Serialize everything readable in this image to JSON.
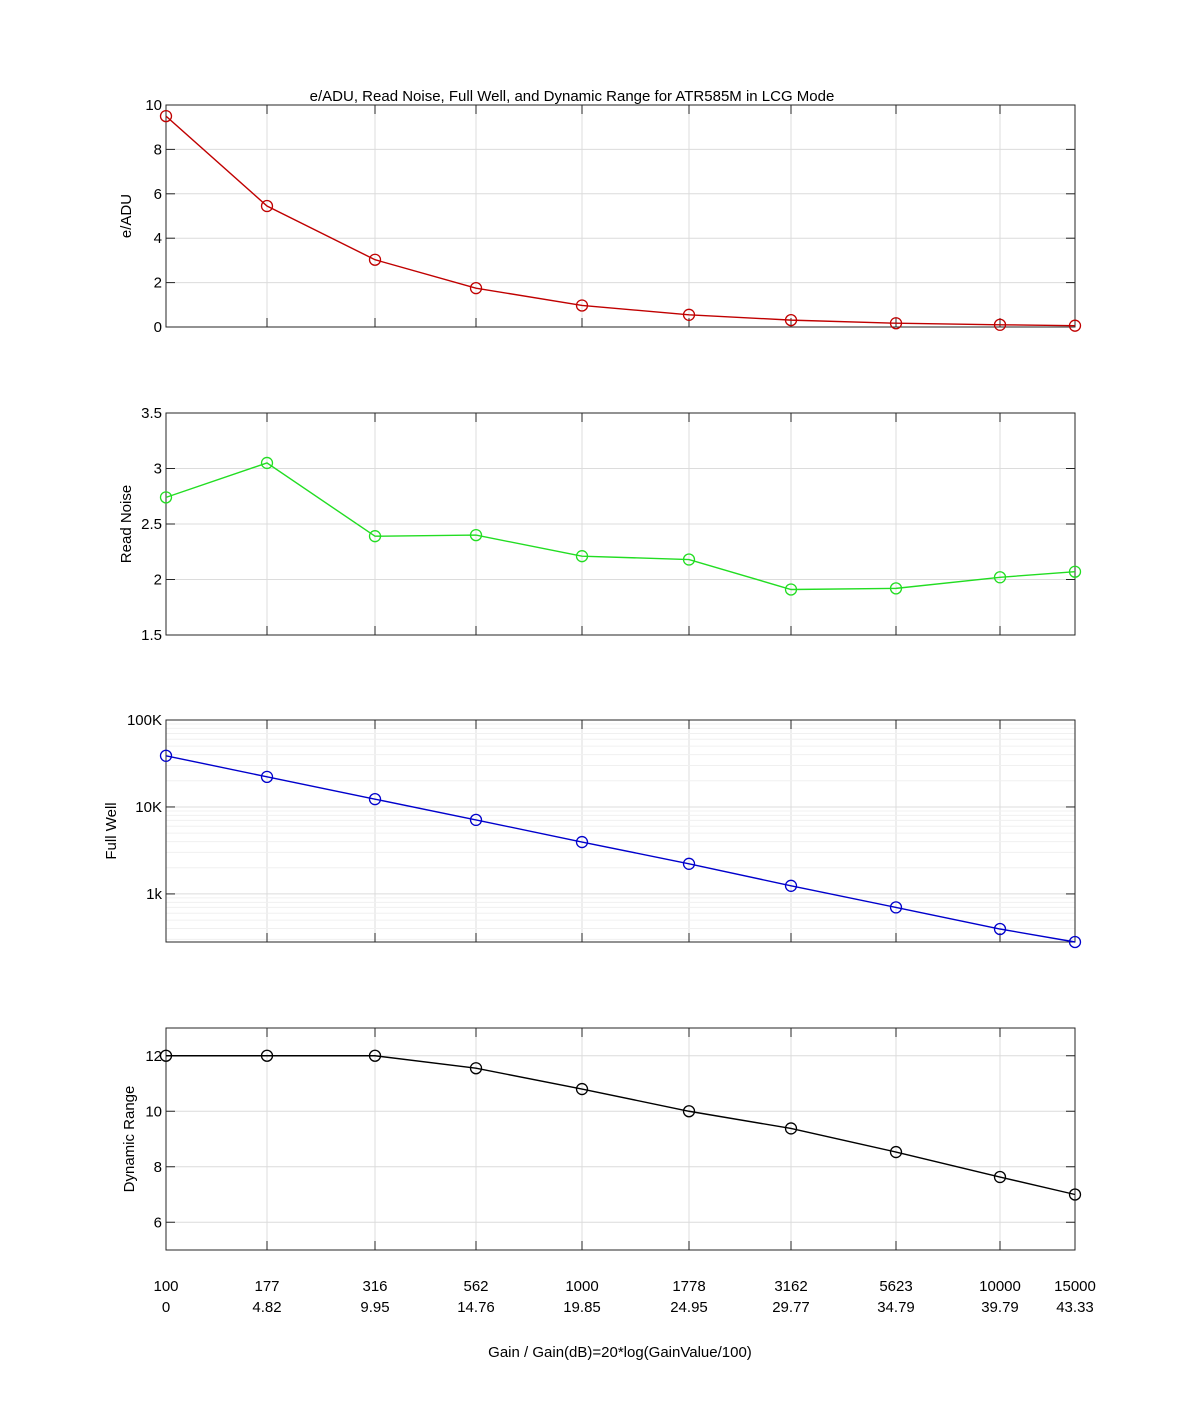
{
  "title": "e/ADU, Read Noise, Full Well, and Dynamic Range for ATR585M  in LCG Mode",
  "xlabel": "Gain / Gain(dB)=20*log(GainValue/100)",
  "x_tick_labels": [
    "100",
    "177",
    "316",
    "562",
    "1000",
    "1778",
    "3162",
    "5623",
    "10000",
    "15000"
  ],
  "x_tick_labels_db": [
    "0",
    "4.82",
    "9.95",
    "14.76",
    "19.85",
    "24.95",
    "29.77",
    "34.79",
    "39.79",
    "43.33"
  ],
  "colors": {
    "e_adu": "#c00000",
    "read_noise": "#22dd22",
    "full_well": "#0000cc",
    "dynamic_range": "#000000"
  },
  "chart_data": [
    {
      "type": "line",
      "ylabel": "e/ADU",
      "ylim": [
        0,
        10
      ],
      "yscale": "linear",
      "grid": true,
      "yticks": [
        0,
        2,
        4,
        6,
        8,
        10
      ],
      "ytick_labels": [
        "0",
        "2",
        "4",
        "6",
        "8",
        "10"
      ],
      "categories": [
        "100",
        "177",
        "316",
        "562",
        "1000",
        "1778",
        "3162",
        "5623",
        "10000",
        "15000"
      ],
      "values": [
        9.5,
        5.45,
        3.03,
        1.75,
        0.97,
        0.55,
        0.31,
        0.17,
        0.1,
        0.06
      ]
    },
    {
      "type": "line",
      "ylabel": "Read Noise",
      "ylim": [
        1.5,
        3.5
      ],
      "yscale": "linear",
      "grid": true,
      "yticks": [
        1.5,
        2,
        2.5,
        3,
        3.5
      ],
      "ytick_labels": [
        "1.5",
        "2",
        "2.5",
        "3",
        "3.5"
      ],
      "categories": [
        "100",
        "177",
        "316",
        "562",
        "1000",
        "1778",
        "3162",
        "5623",
        "10000",
        "15000"
      ],
      "values": [
        2.74,
        3.05,
        2.39,
        2.4,
        2.21,
        2.18,
        1.91,
        1.92,
        2.02,
        2.07
      ]
    },
    {
      "type": "line",
      "ylabel": "Full Well",
      "ylim": [
        280,
        100000
      ],
      "yscale": "log",
      "grid": true,
      "yticks": [
        1000,
        10000,
        100000
      ],
      "ytick_labels": [
        "1k",
        "10K",
        "100K"
      ],
      "categories": [
        "100",
        "177",
        "316",
        "562",
        "1000",
        "1778",
        "3162",
        "5623",
        "10000",
        "15000"
      ],
      "values": [
        38800,
        22200,
        12300,
        7100,
        3950,
        2220,
        1240,
        700,
        395,
        280
      ]
    },
    {
      "type": "line",
      "ylabel": "Dynamic Range",
      "ylim": [
        5,
        13
      ],
      "yscale": "linear",
      "grid": true,
      "yticks": [
        6,
        8,
        10,
        12
      ],
      "ytick_labels": [
        "6",
        "8",
        "10",
        "12"
      ],
      "categories": [
        "100",
        "177",
        "316",
        "562",
        "1000",
        "1778",
        "3162",
        "5623",
        "10000",
        "15000"
      ],
      "values": [
        12.0,
        12.0,
        12.0,
        11.55,
        10.8,
        10.0,
        9.38,
        8.53,
        7.63,
        7.0
      ]
    }
  ]
}
